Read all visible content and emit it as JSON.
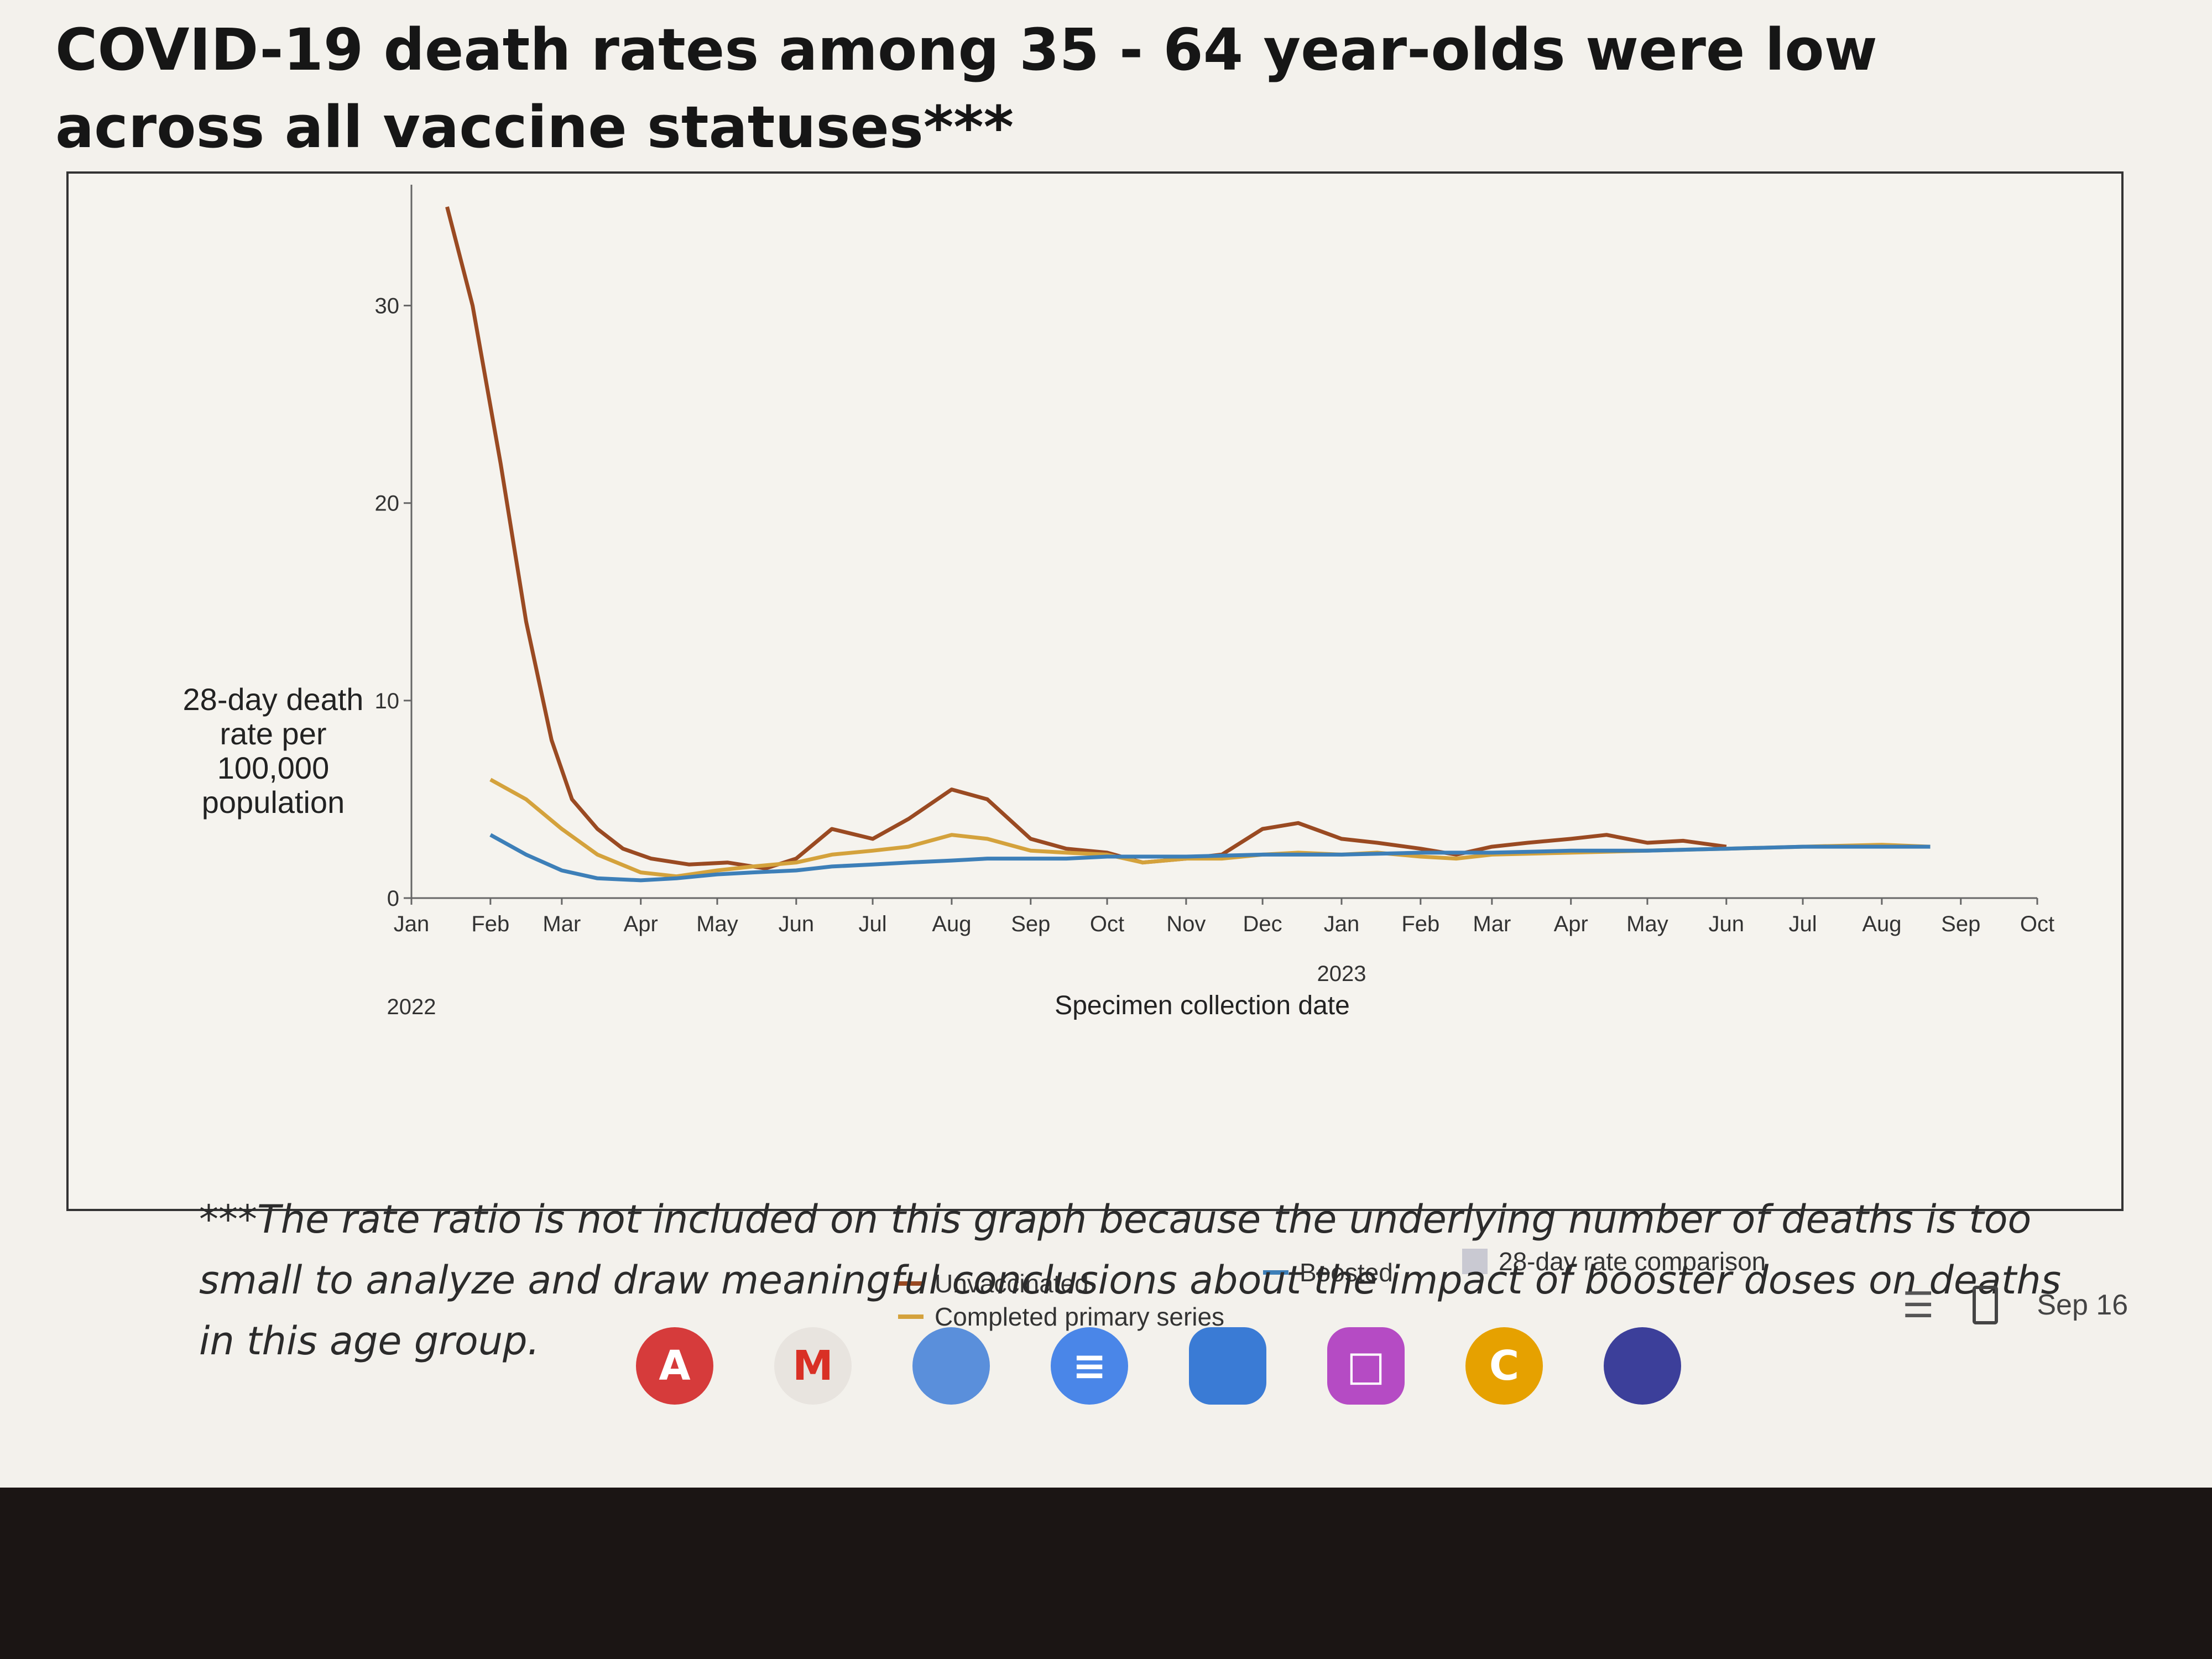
{
  "page": {
    "title": "COVID-19 death rates among 35 - 64 year-olds were low across all vaccine statuses***",
    "footnote": "***The rate ratio is not included on this graph because the underlying number of deaths is too small to analyze and draw meaningful conclusions about the impact of booster doses on deaths in this age group."
  },
  "chart_data": {
    "type": "line",
    "title": "",
    "xlabel": "Specimen collection date",
    "ylabel": "28-day death rate per 100,000 population",
    "ylim": [
      0,
      35
    ],
    "yticks": [
      0,
      10,
      20,
      30
    ],
    "xlim": [
      "2022-01-01",
      "2023-10-01"
    ],
    "xtick_labels": [
      "Jan",
      "Feb",
      "Mar",
      "Apr",
      "May",
      "Jun",
      "Jul",
      "Aug",
      "Sep",
      "Oct",
      "Nov",
      "Dec",
      "Jan",
      "Feb",
      "Mar",
      "Apr",
      "May",
      "Jun",
      "Jul",
      "Aug",
      "Sep",
      "Oct"
    ],
    "year_labels": [
      "2022",
      "2023"
    ],
    "grid": false,
    "legend_position": "bottom",
    "legend": {
      "unvaccinated": "Unvaccinated",
      "completed": "Completed primary series",
      "boosted": "Boosted",
      "comparison": "28-day rate comparison"
    },
    "series": [
      {
        "name": "Unvaccinated",
        "color": "#9a4a22",
        "x": [
          "2022-01-15",
          "2022-01-25",
          "2022-02-05",
          "2022-02-15",
          "2022-02-25",
          "2022-03-05",
          "2022-03-15",
          "2022-03-25",
          "2022-04-05",
          "2022-04-20",
          "2022-05-05",
          "2022-05-20",
          "2022-06-01",
          "2022-06-15",
          "2022-07-01",
          "2022-07-15",
          "2022-08-01",
          "2022-08-15",
          "2022-09-01",
          "2022-09-15",
          "2022-10-01",
          "2022-10-15",
          "2022-11-01",
          "2022-11-15",
          "2022-12-01",
          "2022-12-15",
          "2023-01-01",
          "2023-01-15",
          "2023-02-01",
          "2023-02-15",
          "2023-03-01",
          "2023-03-15",
          "2023-04-01",
          "2023-04-15",
          "2023-05-01",
          "2023-05-15",
          "2023-06-01"
        ],
        "values": [
          35,
          30,
          22,
          14,
          8,
          5,
          3.5,
          2.5,
          2,
          1.7,
          1.8,
          1.5,
          2,
          3.5,
          3,
          4,
          5.5,
          5,
          3,
          2.5,
          2.3,
          1.8,
          2,
          2.2,
          3.5,
          3.8,
          3,
          2.8,
          2.5,
          2.2,
          2.6,
          2.8,
          3,
          3.2,
          2.8,
          2.9,
          2.6
        ]
      },
      {
        "name": "Completed primary series",
        "color": "#d4a23c",
        "x": [
          "2022-02-01",
          "2022-02-15",
          "2022-03-01",
          "2022-03-15",
          "2022-04-01",
          "2022-04-15",
          "2022-05-01",
          "2022-05-15",
          "2022-06-01",
          "2022-06-15",
          "2022-07-01",
          "2022-07-15",
          "2022-08-01",
          "2022-08-15",
          "2022-09-01",
          "2022-09-15",
          "2022-10-01",
          "2022-10-15",
          "2022-11-01",
          "2022-11-15",
          "2022-12-01",
          "2022-12-15",
          "2023-01-01",
          "2023-01-15",
          "2023-02-01",
          "2023-02-15",
          "2023-03-01",
          "2023-04-01",
          "2023-05-01",
          "2023-06-01",
          "2023-07-01",
          "2023-08-01",
          "2023-08-20"
        ],
        "values": [
          6,
          5,
          3.5,
          2.2,
          1.3,
          1.1,
          1.4,
          1.6,
          1.8,
          2.2,
          2.4,
          2.6,
          3.2,
          3,
          2.4,
          2.3,
          2.2,
          1.8,
          2,
          2,
          2.2,
          2.3,
          2.2,
          2.3,
          2.1,
          2,
          2.2,
          2.3,
          2.4,
          2.5,
          2.6,
          2.7,
          2.6
        ]
      },
      {
        "name": "Boosted",
        "color": "#3d7fb8",
        "x": [
          "2022-02-01",
          "2022-02-15",
          "2022-03-01",
          "2022-03-15",
          "2022-04-01",
          "2022-04-15",
          "2022-05-01",
          "2022-05-15",
          "2022-06-01",
          "2022-06-15",
          "2022-07-01",
          "2022-07-15",
          "2022-08-01",
          "2022-08-15",
          "2022-09-01",
          "2022-09-15",
          "2022-10-01",
          "2022-11-01",
          "2022-12-01",
          "2023-01-01",
          "2023-02-01",
          "2023-03-01",
          "2023-04-01",
          "2023-05-01",
          "2023-06-01",
          "2023-07-01",
          "2023-08-01",
          "2023-08-20"
        ],
        "values": [
          3.2,
          2.2,
          1.4,
          1,
          0.9,
          1,
          1.2,
          1.3,
          1.4,
          1.6,
          1.7,
          1.8,
          1.9,
          2,
          2,
          2,
          2.1,
          2.1,
          2.2,
          2.2,
          2.3,
          2.3,
          2.4,
          2.4,
          2.5,
          2.6,
          2.6,
          2.6
        ]
      }
    ]
  },
  "taskbar": {
    "apps": [
      {
        "name": "acrobat-icon",
        "glyph": "A",
        "color": "#d63b3b"
      },
      {
        "name": "gmail-icon",
        "glyph": "M",
        "color": "#e8e4df"
      },
      {
        "name": "chrome-icon",
        "glyph": "",
        "color": "#5a8fdb"
      },
      {
        "name": "docs-icon",
        "glyph": "≡",
        "color": "#4a86e8"
      },
      {
        "name": "files-icon",
        "glyph": "",
        "color": "#3a7bd5"
      },
      {
        "name": "canvas-icon",
        "glyph": "□",
        "color": "#b54bc4"
      },
      {
        "name": "classlink-icon",
        "glyph": "C",
        "color": "#e6a100"
      },
      {
        "name": "firefox-icon",
        "glyph": "",
        "color": "#3c3f9a"
      }
    ],
    "date": "Sep 16"
  }
}
